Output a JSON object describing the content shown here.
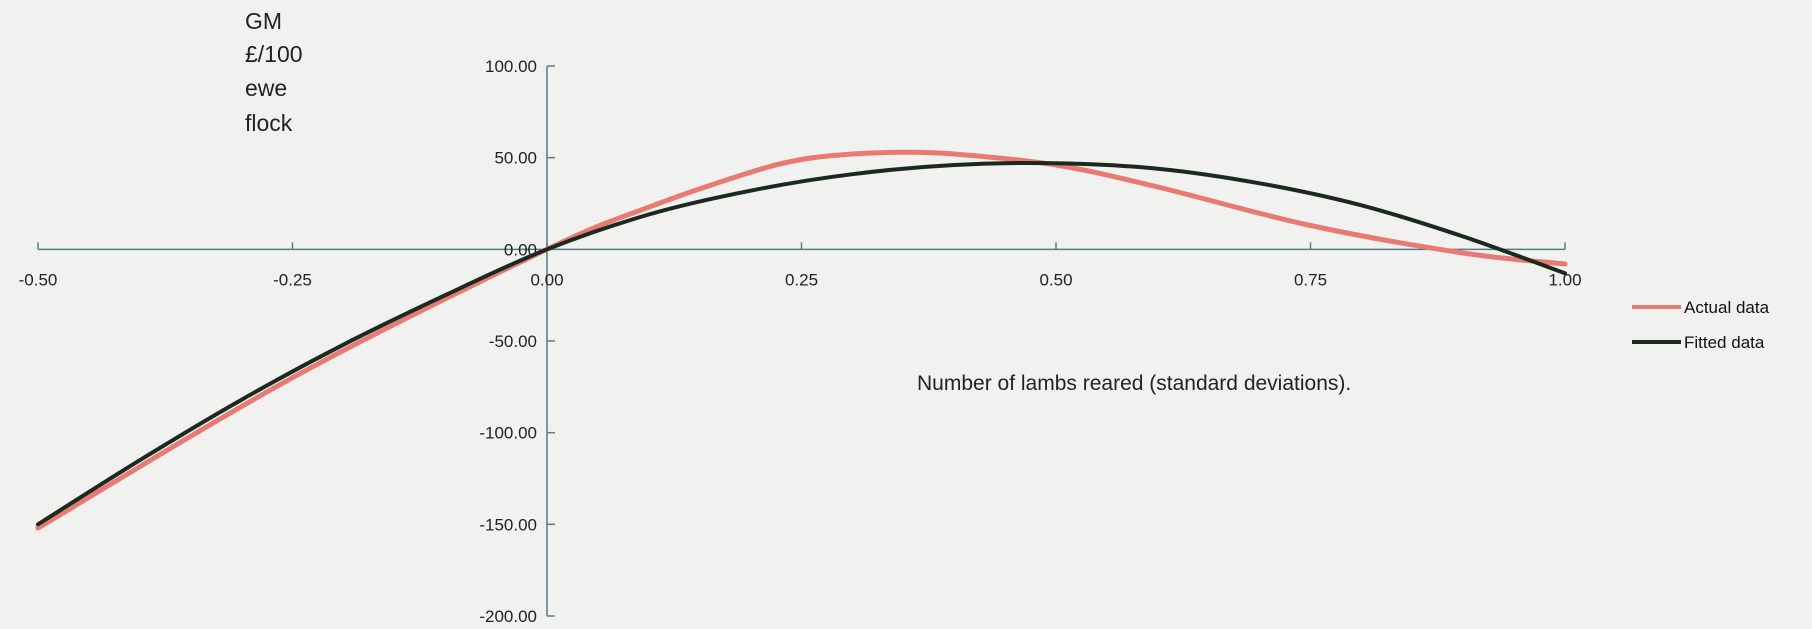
{
  "chart_data": {
    "type": "line",
    "title": "",
    "xlabel": "Number of lambs reared  (standard deviations).",
    "ylabel_lines": [
      "GM",
      "£/100",
      "ewe",
      "flock"
    ],
    "xlim": [
      -0.5,
      1.0
    ],
    "ylim": [
      -200,
      100
    ],
    "x_ticks": [
      "-0.50",
      "-0.25",
      "0.00",
      "0.25",
      "0.50",
      "0.75",
      "1.00"
    ],
    "y_ticks": [
      "100.00",
      "50.00",
      "0.00",
      "-50.00",
      "-100.00",
      "-150.00",
      "-200.00"
    ],
    "grid": false,
    "legend_position": "right",
    "series": [
      {
        "name": "Actual data",
        "color": "#e87a72",
        "x": [
          -0.5,
          -0.25,
          0.0,
          0.1,
          0.2,
          0.25,
          0.3,
          0.35,
          0.4,
          0.5,
          0.6,
          0.75,
          0.9,
          1.0
        ],
        "y": [
          -152,
          -70,
          0,
          23,
          42,
          49,
          52,
          53,
          52,
          46,
          34,
          13,
          -2,
          -8
        ]
      },
      {
        "name": "Fitted data",
        "color": "#1b2a1f",
        "x": [
          -0.5,
          -0.4,
          -0.3,
          -0.2,
          -0.1,
          0.0,
          0.1,
          0.2,
          0.3,
          0.4,
          0.5,
          0.6,
          0.7,
          0.8,
          0.9,
          1.0
        ],
        "y": [
          -150,
          -115,
          -82,
          -52,
          -25,
          0,
          19,
          32,
          41,
          46,
          47,
          44,
          36,
          24,
          7,
          -13
        ]
      }
    ]
  }
}
